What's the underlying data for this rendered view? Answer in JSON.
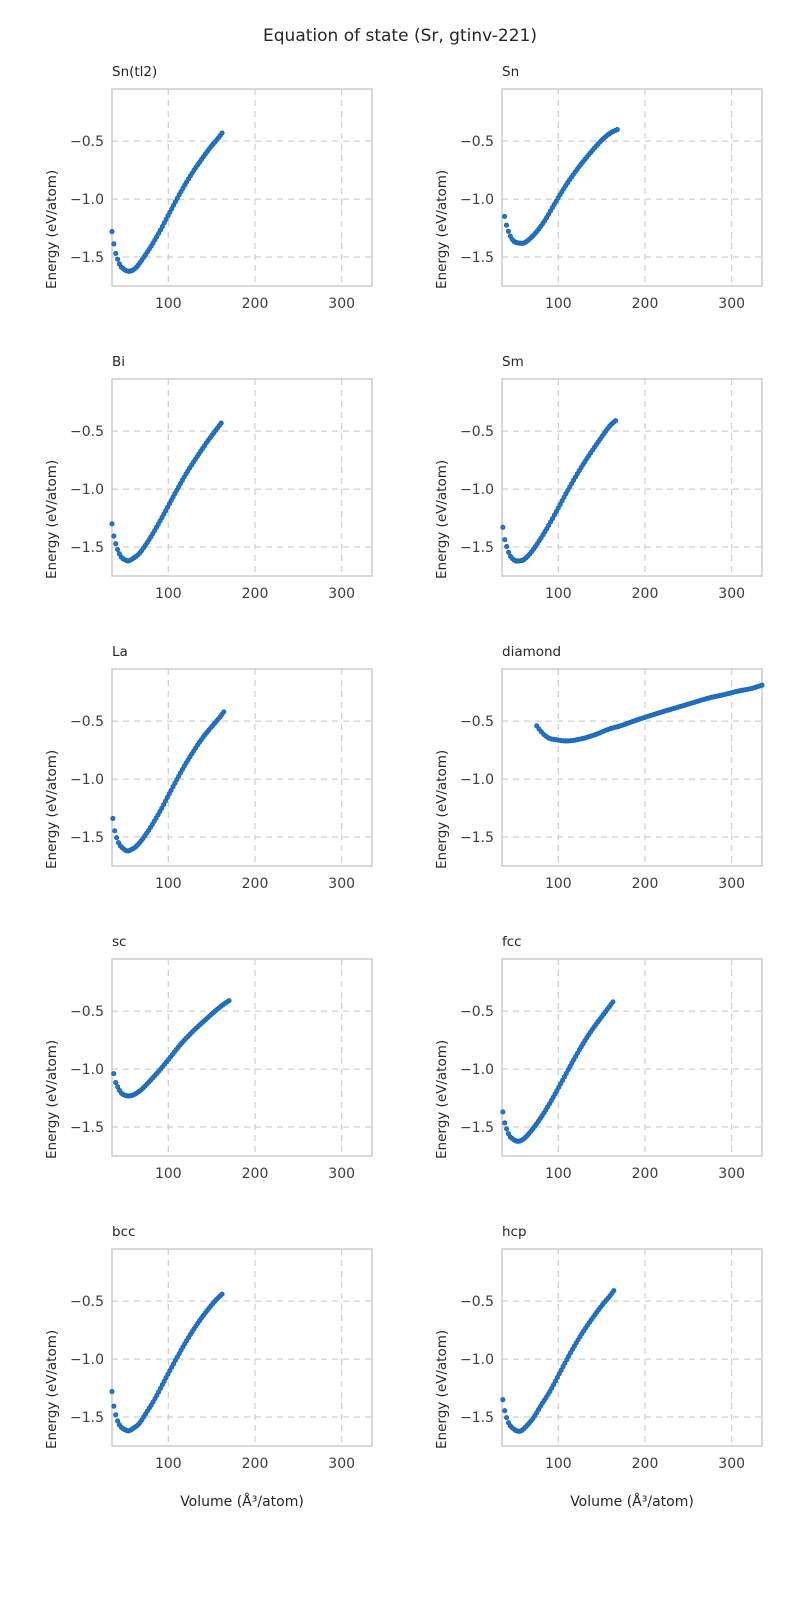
{
  "page": {
    "title": "Equation of state (Sr, gtinv-221)"
  },
  "chart_data": {
    "type": "scatter",
    "title": "Equation of state (Sr, gtinv-221)",
    "xlabel": "Volume (Å³/atom)",
    "ylabel": "Energy (eV/atom)",
    "xlim": [
      35,
      335
    ],
    "ylim": [
      -1.75,
      -0.05
    ],
    "xticks": [
      100,
      200,
      300
    ],
    "yticks": [
      -0.5,
      -1.0,
      -1.5
    ],
    "xtick_labels": [
      "100",
      "200",
      "300"
    ],
    "ytick_labels": [
      "−0.5",
      "−1.0",
      "−1.5"
    ],
    "grid": true,
    "legend": false,
    "layout": {
      "rows": 5,
      "cols": 2
    },
    "marker": {
      "shape": "circle",
      "radius": 2.2,
      "fill": "#2176cd",
      "edge": "#1a5fa8"
    },
    "colors": {
      "background": "#ffffff",
      "grid_line": "#cfcfcf",
      "spine": "#c8c8c8",
      "tick_text": "#3d3d3d",
      "title_text": "#262626"
    },
    "plots": [
      {
        "title": "Sn(tl2)",
        "n_dots": 60,
        "key_points": [
          [
            35,
            -1.28
          ],
          [
            37,
            -1.38
          ],
          [
            39,
            -1.46
          ],
          [
            42,
            -1.53
          ],
          [
            45,
            -1.58
          ],
          [
            48,
            -1.6
          ],
          [
            52,
            -1.62
          ],
          [
            57,
            -1.62
          ],
          [
            63,
            -1.59
          ],
          [
            70,
            -1.52
          ],
          [
            79,
            -1.42
          ],
          [
            90,
            -1.28
          ],
          [
            102,
            -1.11
          ],
          [
            115,
            -0.93
          ],
          [
            128,
            -0.77
          ],
          [
            140,
            -0.64
          ],
          [
            150,
            -0.54
          ],
          [
            157,
            -0.48
          ],
          [
            162,
            -0.43
          ]
        ]
      },
      {
        "title": "Sn",
        "n_dots": 60,
        "key_points": [
          [
            38,
            -1.15
          ],
          [
            40,
            -1.22
          ],
          [
            43,
            -1.29
          ],
          [
            46,
            -1.34
          ],
          [
            50,
            -1.37
          ],
          [
            55,
            -1.38
          ],
          [
            60,
            -1.38
          ],
          [
            66,
            -1.35
          ],
          [
            74,
            -1.29
          ],
          [
            84,
            -1.19
          ],
          [
            95,
            -1.05
          ],
          [
            108,
            -0.89
          ],
          [
            122,
            -0.74
          ],
          [
            136,
            -0.61
          ],
          [
            149,
            -0.5
          ],
          [
            160,
            -0.43
          ],
          [
            168,
            -0.4
          ]
        ]
      },
      {
        "title": "Bi",
        "n_dots": 60,
        "key_points": [
          [
            35,
            -1.3
          ],
          [
            37,
            -1.4
          ],
          [
            40,
            -1.49
          ],
          [
            43,
            -1.55
          ],
          [
            46,
            -1.59
          ],
          [
            50,
            -1.61
          ],
          [
            54,
            -1.62
          ],
          [
            59,
            -1.6
          ],
          [
            66,
            -1.56
          ],
          [
            74,
            -1.48
          ],
          [
            84,
            -1.36
          ],
          [
            96,
            -1.2
          ],
          [
            109,
            -1.02
          ],
          [
            122,
            -0.85
          ],
          [
            135,
            -0.7
          ],
          [
            146,
            -0.58
          ],
          [
            155,
            -0.49
          ],
          [
            161,
            -0.43
          ]
        ]
      },
      {
        "title": "Sm",
        "n_dots": 60,
        "key_points": [
          [
            36,
            -1.33
          ],
          [
            38,
            -1.43
          ],
          [
            41,
            -1.51
          ],
          [
            44,
            -1.57
          ],
          [
            47,
            -1.6
          ],
          [
            51,
            -1.62
          ],
          [
            55,
            -1.62
          ],
          [
            60,
            -1.61
          ],
          [
            67,
            -1.56
          ],
          [
            75,
            -1.48
          ],
          [
            86,
            -1.35
          ],
          [
            98,
            -1.19
          ],
          [
            111,
            -1.01
          ],
          [
            125,
            -0.83
          ],
          [
            138,
            -0.68
          ],
          [
            150,
            -0.55
          ],
          [
            160,
            -0.45
          ],
          [
            166,
            -0.41
          ]
        ]
      },
      {
        "title": "La",
        "n_dots": 60,
        "key_points": [
          [
            36,
            -1.34
          ],
          [
            38,
            -1.44
          ],
          [
            41,
            -1.52
          ],
          [
            44,
            -1.57
          ],
          [
            48,
            -1.6
          ],
          [
            52,
            -1.62
          ],
          [
            57,
            -1.61
          ],
          [
            63,
            -1.58
          ],
          [
            71,
            -1.51
          ],
          [
            80,
            -1.41
          ],
          [
            91,
            -1.27
          ],
          [
            103,
            -1.1
          ],
          [
            116,
            -0.92
          ],
          [
            129,
            -0.76
          ],
          [
            141,
            -0.63
          ],
          [
            151,
            -0.54
          ],
          [
            159,
            -0.47
          ],
          [
            164,
            -0.42
          ]
        ]
      },
      {
        "title": "diamond",
        "n_dots": 95,
        "key_points": [
          [
            75,
            -0.54
          ],
          [
            79,
            -0.58
          ],
          [
            84,
            -0.62
          ],
          [
            90,
            -0.65
          ],
          [
            97,
            -0.66
          ],
          [
            105,
            -0.67
          ],
          [
            113,
            -0.67
          ],
          [
            122,
            -0.66
          ],
          [
            133,
            -0.64
          ],
          [
            145,
            -0.61
          ],
          [
            158,
            -0.57
          ],
          [
            172,
            -0.54
          ],
          [
            187,
            -0.5
          ],
          [
            203,
            -0.46
          ],
          [
            220,
            -0.42
          ],
          [
            238,
            -0.38
          ],
          [
            256,
            -0.34
          ],
          [
            274,
            -0.3
          ],
          [
            292,
            -0.27
          ],
          [
            308,
            -0.24
          ],
          [
            322,
            -0.22
          ],
          [
            335,
            -0.19
          ]
        ]
      },
      {
        "title": "sc",
        "n_dots": 60,
        "key_points": [
          [
            37,
            -1.04
          ],
          [
            39,
            -1.11
          ],
          [
            42,
            -1.16
          ],
          [
            45,
            -1.2
          ],
          [
            48,
            -1.22
          ],
          [
            52,
            -1.23
          ],
          [
            57,
            -1.23
          ],
          [
            63,
            -1.21
          ],
          [
            70,
            -1.17
          ],
          [
            79,
            -1.1
          ],
          [
            90,
            -1.01
          ],
          [
            102,
            -0.9
          ],
          [
            115,
            -0.78
          ],
          [
            129,
            -0.67
          ],
          [
            142,
            -0.58
          ],
          [
            154,
            -0.5
          ],
          [
            164,
            -0.44
          ],
          [
            170,
            -0.41
          ]
        ]
      },
      {
        "title": "fcc",
        "n_dots": 60,
        "key_points": [
          [
            36,
            -1.37
          ],
          [
            38,
            -1.46
          ],
          [
            41,
            -1.53
          ],
          [
            44,
            -1.58
          ],
          [
            47,
            -1.6
          ],
          [
            51,
            -1.62
          ],
          [
            56,
            -1.62
          ],
          [
            62,
            -1.59
          ],
          [
            69,
            -1.53
          ],
          [
            78,
            -1.44
          ],
          [
            89,
            -1.31
          ],
          [
            101,
            -1.15
          ],
          [
            114,
            -0.97
          ],
          [
            127,
            -0.8
          ],
          [
            139,
            -0.66
          ],
          [
            150,
            -0.55
          ],
          [
            158,
            -0.47
          ],
          [
            163,
            -0.42
          ]
        ]
      },
      {
        "title": "bcc",
        "n_dots": 60,
        "key_points": [
          [
            35,
            -1.28
          ],
          [
            37,
            -1.4
          ],
          [
            40,
            -1.5
          ],
          [
            43,
            -1.56
          ],
          [
            46,
            -1.59
          ],
          [
            50,
            -1.61
          ],
          [
            54,
            -1.62
          ],
          [
            59,
            -1.6
          ],
          [
            66,
            -1.56
          ],
          [
            74,
            -1.47
          ],
          [
            84,
            -1.35
          ],
          [
            96,
            -1.18
          ],
          [
            109,
            -1.0
          ],
          [
            122,
            -0.83
          ],
          [
            135,
            -0.68
          ],
          [
            146,
            -0.57
          ],
          [
            155,
            -0.49
          ],
          [
            162,
            -0.44
          ]
        ]
      },
      {
        "title": "hcp",
        "n_dots": 60,
        "key_points": [
          [
            36,
            -1.35
          ],
          [
            38,
            -1.44
          ],
          [
            41,
            -1.52
          ],
          [
            44,
            -1.57
          ],
          [
            48,
            -1.6
          ],
          [
            52,
            -1.62
          ],
          [
            57,
            -1.62
          ],
          [
            63,
            -1.58
          ],
          [
            71,
            -1.51
          ],
          [
            80,
            -1.4
          ],
          [
            91,
            -1.27
          ],
          [
            103,
            -1.1
          ],
          [
            116,
            -0.92
          ],
          [
            129,
            -0.76
          ],
          [
            141,
            -0.63
          ],
          [
            151,
            -0.53
          ],
          [
            159,
            -0.46
          ],
          [
            164,
            -0.41
          ]
        ]
      }
    ]
  }
}
